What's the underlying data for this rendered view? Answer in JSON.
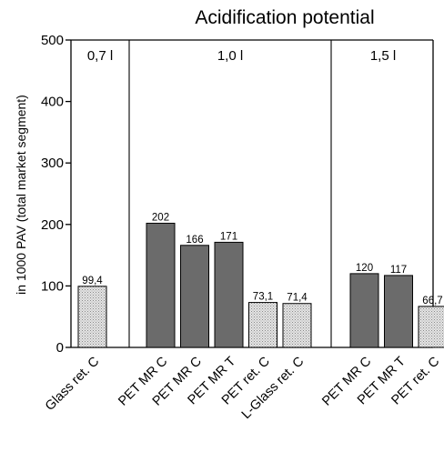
{
  "chart_data": {
    "type": "bar",
    "title": "Acidification potential",
    "ylabel": "in 1000 PAV (total market segment)",
    "xlabel": "",
    "ylim": [
      0,
      500
    ],
    "yticks": [
      0,
      100,
      200,
      300,
      400,
      500
    ],
    "grid": false,
    "groups": [
      {
        "label": "0,7 l",
        "bars": [
          {
            "category": "Glass ret. C",
            "value": 99.4,
            "value_label": "99,4",
            "kind": "light"
          }
        ]
      },
      {
        "label": "1,0 l",
        "bars": [
          {
            "category": "PET MR C",
            "value": 202,
            "value_label": "202",
            "kind": "dark"
          },
          {
            "category": "PET MR C",
            "value": 166,
            "value_label": "166",
            "kind": "dark"
          },
          {
            "category": "PET MR T",
            "value": 171,
            "value_label": "171",
            "kind": "dark"
          },
          {
            "category": "PET ret. C",
            "value": 73.1,
            "value_label": "73,1",
            "kind": "light"
          },
          {
            "category": "L-Glass ret. C",
            "value": 71.4,
            "value_label": "71,4",
            "kind": "light"
          }
        ]
      },
      {
        "label": "1,5 l",
        "bars": [
          {
            "category": "PET MR C",
            "value": 120,
            "value_label": "120",
            "kind": "dark"
          },
          {
            "category": "PET MR T",
            "value": 117,
            "value_label": "117",
            "kind": "dark"
          },
          {
            "category": "PET ret. C",
            "value": 66.7,
            "value_label": "66,7",
            "kind": "light"
          }
        ]
      }
    ],
    "colors": {
      "dark": "#6b6b6b",
      "light": "#d2d2d2"
    }
  }
}
